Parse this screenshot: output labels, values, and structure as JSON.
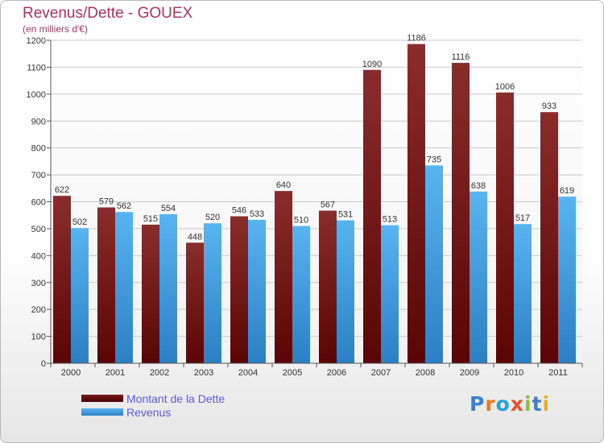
{
  "header": {
    "title": "Revenus/Dette - GOUEX",
    "subtitle": "(en milliers d'€)"
  },
  "chart_data": {
    "type": "bar",
    "categories": [
      "2000",
      "2001",
      "2002",
      "2003",
      "2004",
      "2005",
      "2006",
      "2007",
      "2008",
      "2009",
      "2010",
      "2011"
    ],
    "series": [
      {
        "name": "Montant de la Dette",
        "values": [
          622,
          579,
          515,
          448,
          546,
          640,
          567,
          1090,
          1186,
          1116,
          1006,
          933
        ],
        "color": "#7a1a1a"
      },
      {
        "name": "Revenus",
        "values": [
          502,
          562,
          554,
          520,
          533,
          510,
          531,
          513,
          735,
          638,
          517,
          619
        ],
        "color": "#4aa8e8"
      }
    ],
    "ylim": [
      0,
      1200
    ],
    "yticks": [
      0,
      100,
      200,
      300,
      400,
      500,
      600,
      700,
      800,
      900,
      1000,
      1100,
      1200
    ],
    "grid": true,
    "legend_position": "bottom-left"
  },
  "logo": {
    "text": "Proxiti"
  }
}
